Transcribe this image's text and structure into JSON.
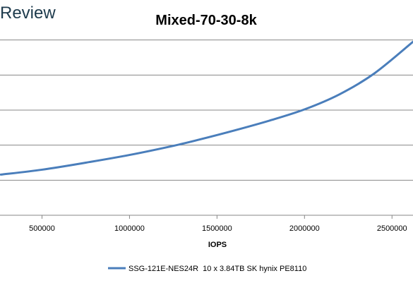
{
  "brand": {
    "text": "Review",
    "color": "#1e3b4d"
  },
  "colors": {
    "series": "#4a7ebb",
    "gridline": "#878787",
    "axis": "#878787"
  },
  "chart_data": {
    "type": "line",
    "title": "Mixed-70-30-8k",
    "xlabel": "IOPS",
    "ylabel": "",
    "xlim": [
      260000,
      2620000
    ],
    "ylim": [
      0,
      6
    ],
    "x_ticks": [
      500000,
      1000000,
      1500000,
      2000000,
      2500000
    ],
    "x_tick_labels": [
      "500000",
      "1000000",
      "1500000",
      "2000000",
      "2500000"
    ],
    "y_ticks": [
      1,
      2,
      3,
      4,
      5
    ],
    "y_tick_labels": [],
    "grid": "horizontal",
    "legend_position": "bottom",
    "series": [
      {
        "name": "SSG-121E-NES24R  10 x 3.84TB SK hynix PE8110",
        "x": [
          265000,
          500000,
          750000,
          1000000,
          1250000,
          1400000,
          1600000,
          1800000,
          2000000,
          2200000,
          2400000,
          2620000
        ],
        "y": [
          1.16,
          1.3,
          1.5,
          1.72,
          1.98,
          2.16,
          2.42,
          2.7,
          3.02,
          3.45,
          4.05,
          4.95
        ]
      }
    ]
  }
}
